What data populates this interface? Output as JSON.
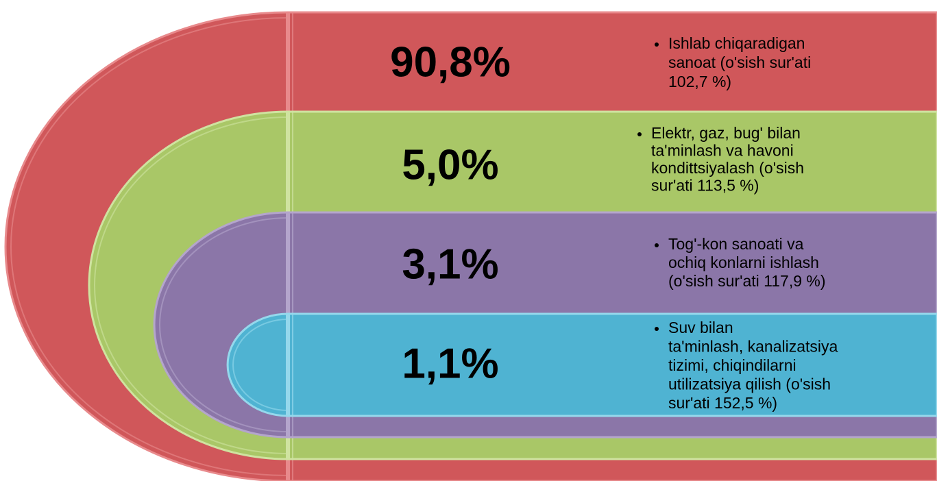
{
  "items": [
    {
      "value": "90,8%",
      "lines": [
        "Ishlab chiqaradigan",
        "sanoat (o'sish sur'ati",
        "102,7 %)"
      ]
    },
    {
      "value": "5,0%",
      "lines": [
        "Elektr, gaz,  bug'  bilan",
        "ta'minlash va havoni",
        "kondittsiyalash (o'sish",
        "sur'ati  113,5 %)"
      ]
    },
    {
      "value": "3,1%",
      "lines": [
        "Tog'-kon sanoati va",
        "ochiq konlarni ishlash",
        "(o'sish sur'ati 117,9 %)"
      ]
    },
    {
      "value": "1,1%",
      "lines": [
        "Suv bilan",
        "ta'minlash, kanalizatsiya",
        "tizimi, chiqindilarni",
        "utilizatsiya qilish (o'sish",
        "sur'ati 152,5 %)"
      ]
    }
  ]
}
